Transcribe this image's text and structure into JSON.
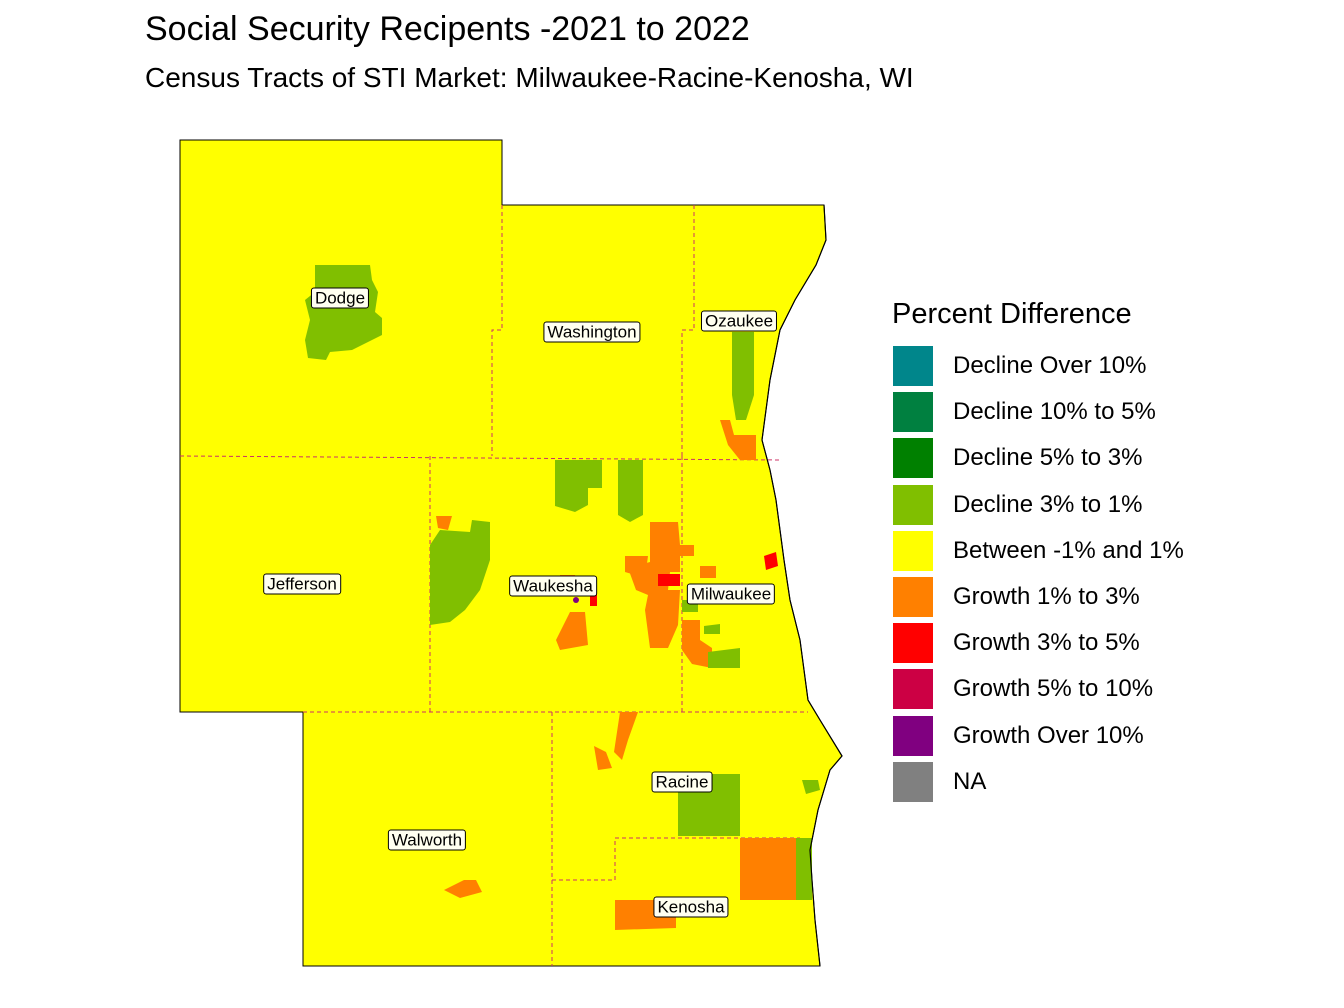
{
  "title": "Social Security Recipents -2021 to 2022",
  "subtitle": "Census Tracts of STI Market: Milwaukee-Racine-Kenosha, WI",
  "legend": {
    "title": "Percent Difference",
    "items": [
      {
        "label": "Decline Over 10%",
        "color": "#00868b"
      },
      {
        "label": "Decline 10% to 5%",
        "color": "#008040"
      },
      {
        "label": "Decline 5% to 3%",
        "color": "#008000"
      },
      {
        "label": "Decline 3% to 1%",
        "color": "#80bf00"
      },
      {
        "label": "Between -1% and 1%",
        "color": "#ffff00"
      },
      {
        "label": "Growth 1% to 3%",
        "color": "#ff8000"
      },
      {
        "label": "Growth 3% to 5%",
        "color": "#ff0000"
      },
      {
        "label": "Growth 5% to 10%",
        "color": "#cc0044"
      },
      {
        "label": "Growth Over 10%",
        "color": "#800080"
      },
      {
        "label": "NA",
        "color": "#808080"
      }
    ]
  },
  "counties": {
    "dodge": "Dodge",
    "washington": "Washington",
    "ozaukee": "Ozaukee",
    "jefferson": "Jefferson",
    "waukesha": "Waukesha",
    "milwaukee": "Milwaukee",
    "racine": "Racine",
    "walworth": "Walworth",
    "kenosha": "Kenosha"
  }
}
